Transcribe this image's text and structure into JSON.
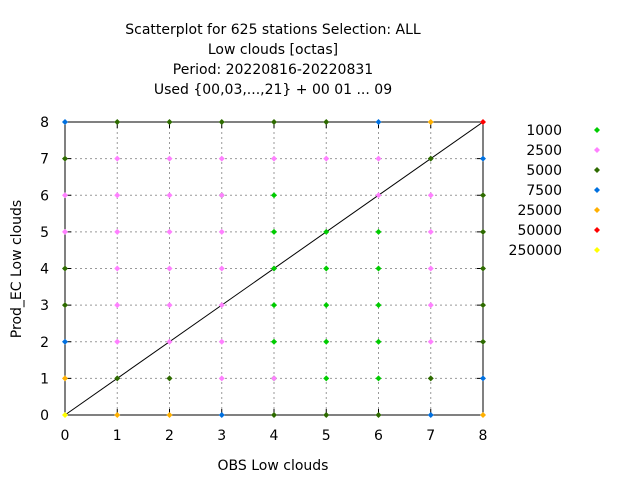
{
  "chart_data": {
    "type": "scatter",
    "title": [
      "Scatterplot for  625 stations Selection: ALL",
      "Low clouds [octas]",
      "Period: 20220816-20220831",
      "Used {00,03,...,21} + 00 01 ... 09"
    ],
    "xlabel": "OBS Low clouds",
    "ylabel": "Prod_EC Low clouds",
    "xlim": [
      0,
      8
    ],
    "ylim": [
      0,
      8
    ],
    "xticks": [
      "0",
      "1",
      "2",
      "3",
      "4",
      "5",
      "6",
      "7",
      "8"
    ],
    "yticks": [
      "0",
      "1",
      "2",
      "3",
      "4",
      "5",
      "6",
      "7",
      "8"
    ],
    "grid": true,
    "diagonal": true,
    "legend_position": "right-outside",
    "series": [
      {
        "name": "1000",
        "color": "#00cc00",
        "points": [
          [
            3,
            6
          ],
          [
            4,
            6
          ],
          [
            4,
            5
          ],
          [
            5,
            5
          ],
          [
            6,
            5
          ],
          [
            4,
            4
          ],
          [
            5,
            4
          ],
          [
            6,
            4
          ],
          [
            4,
            3
          ],
          [
            5,
            3
          ],
          [
            6,
            3
          ],
          [
            4,
            2
          ],
          [
            5,
            2
          ],
          [
            6,
            2
          ],
          [
            4,
            1
          ],
          [
            5,
            1
          ],
          [
            6,
            1
          ]
        ]
      },
      {
        "name": "2500",
        "color": "#ff80ff",
        "points": [
          [
            0,
            6
          ],
          [
            0,
            5
          ],
          [
            1,
            7
          ],
          [
            1,
            6
          ],
          [
            1,
            5
          ],
          [
            1,
            4
          ],
          [
            1,
            3
          ],
          [
            1,
            2
          ],
          [
            2,
            7
          ],
          [
            2,
            6
          ],
          [
            2,
            5
          ],
          [
            2,
            4
          ],
          [
            2,
            3
          ],
          [
            2,
            2
          ],
          [
            3,
            7
          ],
          [
            3,
            6
          ],
          [
            3,
            5
          ],
          [
            3,
            4
          ],
          [
            3,
            3
          ],
          [
            3,
            2
          ],
          [
            4,
            7
          ],
          [
            5,
            7
          ],
          [
            6,
            7
          ],
          [
            6,
            6
          ],
          [
            7,
            6
          ],
          [
            7,
            5
          ],
          [
            7,
            4
          ],
          [
            7,
            3
          ],
          [
            7,
            2
          ],
          [
            3,
            1
          ],
          [
            4,
            1
          ]
        ]
      },
      {
        "name": "5000",
        "color": "#2e6b00",
        "points": [
          [
            0,
            7
          ],
          [
            0,
            4
          ],
          [
            0,
            3
          ],
          [
            1,
            8
          ],
          [
            2,
            8
          ],
          [
            3,
            8
          ],
          [
            4,
            8
          ],
          [
            5,
            8
          ],
          [
            7,
            7
          ],
          [
            8,
            6
          ],
          [
            8,
            5
          ],
          [
            8,
            4
          ],
          [
            8,
            3
          ],
          [
            8,
            2
          ],
          [
            1,
            1
          ],
          [
            2,
            1
          ],
          [
            7,
            1
          ],
          [
            4,
            0
          ],
          [
            5,
            0
          ],
          [
            6,
            0
          ]
        ]
      },
      {
        "name": "7500",
        "color": "#0070e0",
        "points": [
          [
            0,
            8
          ],
          [
            6,
            8
          ],
          [
            0,
            2
          ],
          [
            8,
            7
          ],
          [
            8,
            1
          ],
          [
            3,
            0
          ],
          [
            7,
            0
          ]
        ]
      },
      {
        "name": "25000",
        "color": "#ffb000",
        "points": [
          [
            7,
            8
          ],
          [
            0,
            1
          ],
          [
            1,
            0
          ],
          [
            2,
            0
          ],
          [
            8,
            0
          ]
        ]
      },
      {
        "name": "50000",
        "color": "#ff0000",
        "points": [
          [
            8,
            8
          ]
        ]
      },
      {
        "name": "250000",
        "color": "#ffff00",
        "points": [
          [
            0,
            0
          ]
        ]
      }
    ]
  }
}
